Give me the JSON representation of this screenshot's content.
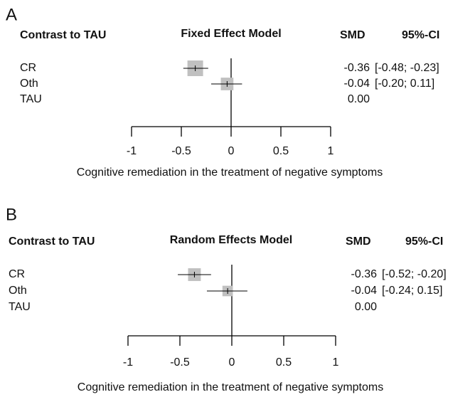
{
  "chart_data": [
    {
      "type": "forest",
      "panel": "A",
      "row_header": "Contrast to TAU",
      "title": "Fixed Effect Model",
      "value_header": "SMD",
      "ci_header": "95%-CI",
      "categories": [
        "CR",
        "Oth",
        "TAU"
      ],
      "values": [
        -0.36,
        -0.04,
        0
      ],
      "value_labels": [
        "-0.36",
        "-0.04",
        "0.00"
      ],
      "lower": [
        -0.48,
        -0.2,
        null
      ],
      "upper": [
        -0.23,
        0.11,
        null
      ],
      "ci_labels": [
        "[-0.48; -0.23]",
        "[-0.20;  0.11]",
        null
      ],
      "color": "#c0c0c0",
      "xlim": [
        -1,
        1
      ],
      "xticks": [
        -1,
        -0.5,
        0,
        0.5,
        1
      ],
      "xlabel": "Cognitive remediation in the treatment of negative symptoms"
    },
    {
      "type": "forest",
      "panel": "B",
      "row_header": "Contrast to TAU",
      "title": "Random Effects Model",
      "value_header": "SMD",
      "ci_header": "95%-CI",
      "categories": [
        "CR",
        "Oth",
        "TAU"
      ],
      "values": [
        -0.36,
        -0.04,
        0
      ],
      "value_labels": [
        "-0.36",
        "-0.04",
        "0.00"
      ],
      "lower": [
        -0.52,
        -0.24,
        null
      ],
      "upper": [
        -0.2,
        0.15,
        null
      ],
      "ci_labels": [
        "[-0.52; -0.20]",
        "[-0.24;  0.15]",
        null
      ],
      "color": "#c0c0c0",
      "xlim": [
        -1,
        1
      ],
      "xticks": [
        -1,
        -0.5,
        0,
        0.5,
        1
      ],
      "xlabel": "Cognitive remediation in the treatment of negative symptoms"
    }
  ]
}
